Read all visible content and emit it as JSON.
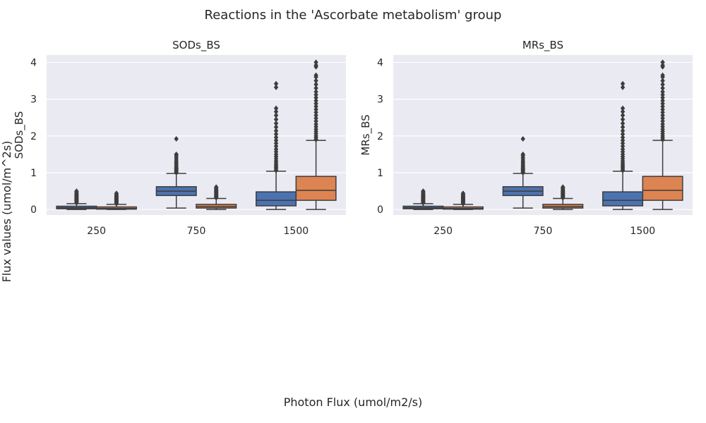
{
  "figure": {
    "title": "Reactions in the 'Ascorbate metabolism' group",
    "supylabel": "Flux values (umol/m^2s)",
    "supxlabel": "Photon Flux (umol/m2/s)"
  },
  "colors": {
    "panel_bg": "#eaeaf2",
    "grid": "#ffffff",
    "series_1": "#4c72b0",
    "series_2": "#dd8452",
    "stroke": "#3d3d3d"
  },
  "chart_data": [
    {
      "type": "box",
      "title": "SODs_BS",
      "ylabel": "SODs_BS",
      "xlabel": "",
      "categories": [
        "250",
        "750",
        "1500"
      ],
      "ylim": [
        -0.15,
        4.2
      ],
      "yticks": [
        "0",
        "1",
        "2",
        "3",
        "4"
      ],
      "grid": true,
      "series": [
        {
          "boxes": [
            {
              "whislo": 0.0,
              "q1": 0.02,
              "med": 0.05,
              "q3": 0.09,
              "whishi": 0.16,
              "fliers": [
                0.18,
                0.2,
                0.22,
                0.24,
                0.26,
                0.28,
                0.3,
                0.32,
                0.34,
                0.36,
                0.38,
                0.4,
                0.42,
                0.44,
                0.47,
                0.5
              ]
            },
            {
              "whislo": 0.04,
              "q1": 0.38,
              "med": 0.5,
              "q3": 0.62,
              "whishi": 0.98,
              "fliers": [
                1.0,
                1.02,
                1.05,
                1.08,
                1.1,
                1.13,
                1.16,
                1.2,
                1.24,
                1.28,
                1.32,
                1.37,
                1.42,
                1.47,
                1.5,
                1.92
              ]
            },
            {
              "whislo": 0.0,
              "q1": 0.1,
              "med": 0.25,
              "q3": 0.48,
              "whishi": 1.04,
              "fliers": [
                1.06,
                1.1,
                1.14,
                1.18,
                1.22,
                1.27,
                1.32,
                1.38,
                1.44,
                1.5,
                1.57,
                1.64,
                1.72,
                1.8,
                1.88,
                1.96,
                2.05,
                2.14,
                2.24,
                2.34,
                2.45,
                2.56,
                2.66,
                2.75,
                3.32,
                3.42
              ]
            }
          ]
        },
        {
          "boxes": [
            {
              "whislo": 0.0,
              "q1": 0.01,
              "med": 0.03,
              "q3": 0.07,
              "whishi": 0.14,
              "fliers": [
                0.16,
                0.18,
                0.2,
                0.22,
                0.24,
                0.26,
                0.28,
                0.3,
                0.32,
                0.34,
                0.36,
                0.38,
                0.41,
                0.44
              ]
            },
            {
              "whislo": 0.0,
              "q1": 0.04,
              "med": 0.08,
              "q3": 0.14,
              "whishi": 0.3,
              "fliers": [
                0.32,
                0.34,
                0.36,
                0.38,
                0.4,
                0.42,
                0.44,
                0.46,
                0.48,
                0.5,
                0.52,
                0.55,
                0.58,
                0.61
              ]
            },
            {
              "whislo": 0.0,
              "q1": 0.25,
              "med": 0.52,
              "q3": 0.9,
              "whishi": 1.88,
              "fliers": [
                1.9,
                1.95,
                2.0,
                2.06,
                2.12,
                2.18,
                2.25,
                2.32,
                2.4,
                2.48,
                2.56,
                2.64,
                2.72,
                2.8,
                2.88,
                2.96,
                3.04,
                3.12,
                3.2,
                3.3,
                3.4,
                3.5,
                3.6,
                3.65,
                3.88,
                3.92,
                4.0
              ]
            }
          ]
        }
      ]
    },
    {
      "type": "box",
      "title": "MRs_BS",
      "ylabel": "MRs_BS",
      "xlabel": "",
      "categories": [
        "250",
        "750",
        "1500"
      ],
      "ylim": [
        -0.15,
        4.2
      ],
      "yticks": [
        "0",
        "1",
        "2",
        "3",
        "4"
      ],
      "grid": true,
      "series": [
        {
          "boxes": [
            {
              "whislo": 0.0,
              "q1": 0.02,
              "med": 0.05,
              "q3": 0.09,
              "whishi": 0.16,
              "fliers": [
                0.18,
                0.2,
                0.22,
                0.24,
                0.26,
                0.28,
                0.3,
                0.32,
                0.34,
                0.36,
                0.38,
                0.4,
                0.42,
                0.44,
                0.47,
                0.5
              ]
            },
            {
              "whislo": 0.04,
              "q1": 0.38,
              "med": 0.5,
              "q3": 0.62,
              "whishi": 0.98,
              "fliers": [
                1.0,
                1.02,
                1.05,
                1.08,
                1.1,
                1.13,
                1.16,
                1.2,
                1.24,
                1.28,
                1.32,
                1.37,
                1.42,
                1.47,
                1.5,
                1.92
              ]
            },
            {
              "whislo": 0.0,
              "q1": 0.1,
              "med": 0.25,
              "q3": 0.48,
              "whishi": 1.04,
              "fliers": [
                1.06,
                1.1,
                1.14,
                1.18,
                1.22,
                1.27,
                1.32,
                1.38,
                1.44,
                1.5,
                1.57,
                1.64,
                1.72,
                1.8,
                1.88,
                1.96,
                2.05,
                2.14,
                2.24,
                2.34,
                2.45,
                2.56,
                2.66,
                2.75,
                3.32,
                3.42
              ]
            }
          ]
        },
        {
          "boxes": [
            {
              "whislo": 0.0,
              "q1": 0.01,
              "med": 0.03,
              "q3": 0.07,
              "whishi": 0.14,
              "fliers": [
                0.16,
                0.18,
                0.2,
                0.22,
                0.24,
                0.26,
                0.28,
                0.3,
                0.32,
                0.34,
                0.36,
                0.38,
                0.41,
                0.44
              ]
            },
            {
              "whislo": 0.0,
              "q1": 0.04,
              "med": 0.08,
              "q3": 0.14,
              "whishi": 0.3,
              "fliers": [
                0.32,
                0.34,
                0.36,
                0.38,
                0.4,
                0.42,
                0.44,
                0.46,
                0.48,
                0.5,
                0.52,
                0.55,
                0.58,
                0.61
              ]
            },
            {
              "whislo": 0.0,
              "q1": 0.25,
              "med": 0.52,
              "q3": 0.9,
              "whishi": 1.88,
              "fliers": [
                1.9,
                1.95,
                2.0,
                2.06,
                2.12,
                2.18,
                2.25,
                2.32,
                2.4,
                2.48,
                2.56,
                2.64,
                2.72,
                2.8,
                2.88,
                2.96,
                3.04,
                3.12,
                3.2,
                3.3,
                3.4,
                3.5,
                3.6,
                3.65,
                3.88,
                3.92,
                4.0
              ]
            }
          ]
        }
      ]
    }
  ]
}
